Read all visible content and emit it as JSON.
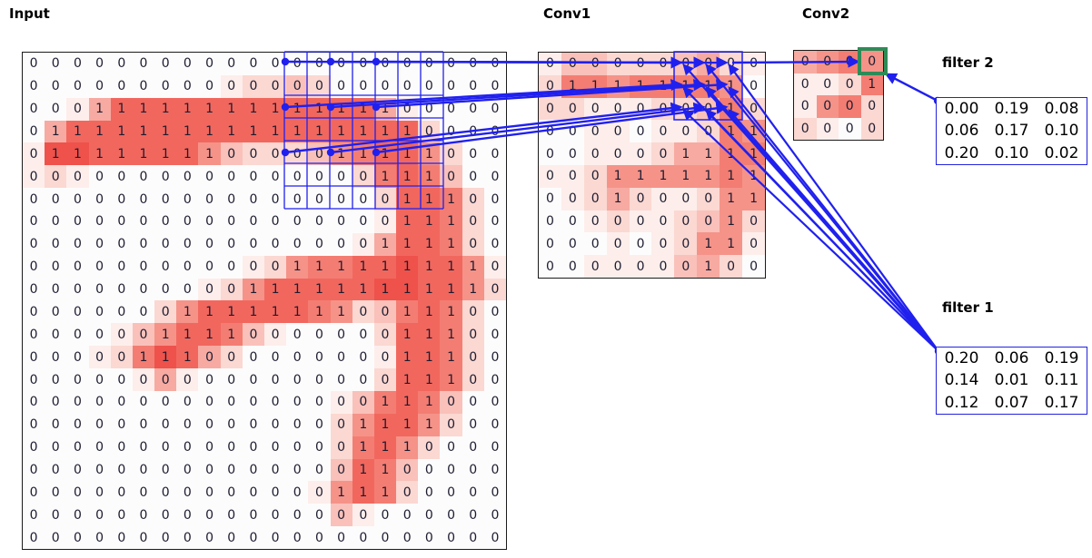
{
  "titles": {
    "input": "Input",
    "conv1": "Conv1",
    "conv2": "Conv2",
    "filter1": "filter 1",
    "filter2": "filter 2"
  },
  "colors": {
    "accent_blue": "#2020ee",
    "green_highlight": "#2e8b57",
    "digit_text": "#1c1c30",
    "red_palette": [
      "#fdfcfc",
      "#fdeeeb",
      "#fbd8d2",
      "#f9c1ba",
      "#f7aaa1",
      "#f59389",
      "#f37d72",
      "#f1675e",
      "#ee524b",
      "#ec3d38"
    ]
  },
  "input_grid": {
    "rows": 22,
    "cols": 22,
    "values": [
      "0000000000000000000000",
      "0000000000000000000000",
      "0001111111111111100000",
      "0111111111111111110000",
      "0111111110000011111000",
      "0000000000000000111000",
      "0000000000000000011100",
      "0000000000000000011100",
      "0000000000000000111100",
      "0000000000001111111110",
      "0000000000111111111110",
      "0000000111111110011100",
      "0000001111000000011100",
      "0000011100000000011100",
      "0000000000000000011100",
      "0000000000000000111000",
      "0000000000000001111000",
      "0000000000000001110000",
      "0000000000000001100000",
      "0000000000000011100000",
      "0000000000000000000000",
      "0000000000000000000000"
    ],
    "intensities": [
      "0000000000000000000000",
      "0000000001223200000000",
      "0014777777777777410000",
      "0477777777777777772000",
      "1887777753222356775200",
      "1210000000000002676300",
      "0000000000000000277620",
      "0000000000000000177620",
      "0000000000000001477620",
      "0000000000125667787751",
      "0000000012577777887752",
      "0000002577777652367620",
      "0000135776310000277620",
      "0001268742000000177620",
      "0000014100000000277620",
      "0000000000000013676300",
      "0000000000000025775200",
      "0000000000000026752000",
      "0000000000000037630000",
      "0000000000000157620000",
      "0000000000000031000000",
      "0000000000000000000000"
    ]
  },
  "conv1_grid": {
    "rows": 10,
    "cols": 10,
    "values": [
      "0000000000",
      "0111111110",
      "0000000010",
      "0000000011",
      "0000001111",
      "0001111111",
      "0001000011",
      "0000000010",
      "0000000110",
      "0000000100"
    ],
    "intensities": [
      "1332223421",
      "2665666650",
      "2211122362",
      "0011011265",
      "0011124466",
      "1125555565",
      "0124211255",
      "0012112352",
      "0001012551",
      "0011113420"
    ]
  },
  "conv2_grid": {
    "rows": 4,
    "cols": 4,
    "values": [
      "0000",
      "0001",
      "0000",
      "0000"
    ],
    "intensities": [
      "4565",
      "1126",
      "1562",
      "2102"
    ]
  },
  "filter1": {
    "values": [
      [
        "0.20",
        "0.06",
        "0.19"
      ],
      [
        "0.14",
        "0.01",
        "0.11"
      ],
      [
        "0.12",
        "0.07",
        "0.17"
      ]
    ]
  },
  "filter2": {
    "values": [
      [
        "0.00",
        "0.19",
        "0.08"
      ],
      [
        "0.06",
        "0.17",
        "0.10"
      ],
      [
        "0.20",
        "0.10",
        "0.02"
      ]
    ]
  }
}
